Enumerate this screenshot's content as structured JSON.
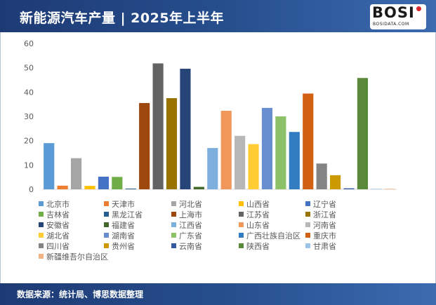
{
  "header": {
    "title": "新能源汽车产量 | 2025年上半年"
  },
  "logo": {
    "text": "BOSI",
    "subtext": "BOSIDATA.COM"
  },
  "footer": {
    "source": "数据来源：统计局、博思数据整理"
  },
  "chart_data": {
    "type": "bar",
    "title": "新能源汽车产量 | 2025年上半年",
    "xlabel": "",
    "ylabel": "",
    "ylim": [
      0,
      60
    ],
    "yticks": [
      0,
      10,
      20,
      30,
      40,
      50,
      60
    ],
    "legend_position": "bottom",
    "grid": false,
    "series": [
      {
        "name": "北京市",
        "value": 19,
        "color": "#5b9bd5"
      },
      {
        "name": "天津市",
        "value": 1.5,
        "color": "#ed7d31"
      },
      {
        "name": "河北省",
        "value": 12.8,
        "color": "#a5a5a5"
      },
      {
        "name": "山西省",
        "value": 1.4,
        "color": "#ffc000"
      },
      {
        "name": "辽宁省",
        "value": 5.2,
        "color": "#4472c4"
      },
      {
        "name": "吉林省",
        "value": 5.1,
        "color": "#70ad47"
      },
      {
        "name": "黑龙江省",
        "value": 0.3,
        "color": "#255e91"
      },
      {
        "name": "上海市",
        "value": 35.5,
        "color": "#9e480e"
      },
      {
        "name": "江苏省",
        "value": 51.8,
        "color": "#636363"
      },
      {
        "name": "浙江省",
        "value": 37.5,
        "color": "#997300"
      },
      {
        "name": "安徽省",
        "value": 49.6,
        "color": "#264478"
      },
      {
        "name": "福建省",
        "value": 1.0,
        "color": "#43682b"
      },
      {
        "name": "江西省",
        "value": 17,
        "color": "#7cafdd"
      },
      {
        "name": "山东省",
        "value": 32.3,
        "color": "#f1975a"
      },
      {
        "name": "河南省",
        "value": 22,
        "color": "#b7b7b7"
      },
      {
        "name": "湖北省",
        "value": 18.6,
        "color": "#ffcd33"
      },
      {
        "name": "湖南省",
        "value": 33.5,
        "color": "#698ed0"
      },
      {
        "name": "广东省",
        "value": 30,
        "color": "#8cc168"
      },
      {
        "name": "广西壮族自治区",
        "value": 23.6,
        "color": "#327dc2"
      },
      {
        "name": "重庆市",
        "value": 39.4,
        "color": "#d26012"
      },
      {
        "name": "四川省",
        "value": 10.6,
        "color": "#848484"
      },
      {
        "name": "贵州省",
        "value": 5.8,
        "color": "#cc9a00"
      },
      {
        "name": "云南省",
        "value": 0.4,
        "color": "#335aa1"
      },
      {
        "name": "陕西省",
        "value": 45.8,
        "color": "#5a8a39"
      },
      {
        "name": "甘肃省",
        "value": 0.2,
        "color": "#9dc3e6"
      },
      {
        "name": "新疆维吾尔自治区",
        "value": 0.2,
        "color": "#f4b183"
      }
    ]
  }
}
